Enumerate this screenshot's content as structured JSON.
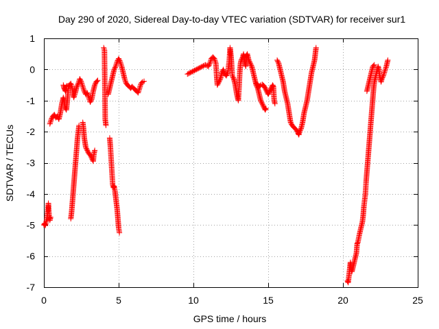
{
  "chart_data": {
    "type": "scatter",
    "title": "Day 290 of 2020, Sidereal Day-to-day VTEC variation (SDTVAR) for receiver sur1",
    "xlabel": "GPS time / hours",
    "ylabel": "SDTVAR / TECUs",
    "xlim": [
      0,
      25
    ],
    "ylim": [
      -7,
      1
    ],
    "xticks": [
      0,
      5,
      10,
      15,
      20,
      25
    ],
    "yticks": [
      -7,
      -6,
      -5,
      -4,
      -3,
      -2,
      -1,
      0,
      1
    ],
    "xtick_labels": [
      "0",
      "5",
      "10",
      "15",
      "20",
      "25"
    ],
    "ytick_labels": [
      "-7",
      "-6",
      "-5",
      "-4",
      "-3",
      "-2",
      "-1",
      "0",
      "1"
    ],
    "grid": true,
    "marker": "plus",
    "color": "#ff0000",
    "series": [
      {
        "name": "SDTVAR",
        "segments": [
          [
            [
              0.0,
              -5.0
            ],
            [
              0.05,
              -4.95
            ],
            [
              0.1,
              -5.02
            ],
            [
              0.15,
              -4.9
            ],
            [
              0.2,
              -4.8
            ],
            [
              0.25,
              -4.6
            ],
            [
              0.3,
              -4.3
            ],
            [
              0.35,
              -4.7
            ],
            [
              0.4,
              -4.85
            ],
            [
              0.45,
              -4.75
            ]
          ],
          [
            [
              0.4,
              -1.75
            ],
            [
              0.5,
              -1.6
            ],
            [
              0.6,
              -1.5
            ],
            [
              0.7,
              -1.45
            ],
            [
              0.8,
              -1.55
            ],
            [
              0.9,
              -1.5
            ],
            [
              1.0,
              -1.6
            ],
            [
              1.1,
              -1.4
            ],
            [
              1.2,
              -1.1
            ],
            [
              1.3,
              -0.9
            ],
            [
              1.35,
              -1.0
            ],
            [
              1.4,
              -1.2
            ],
            [
              1.5,
              -1.3
            ],
            [
              1.55,
              -1.1
            ],
            [
              1.6,
              -0.8
            ],
            [
              1.65,
              -0.55
            ],
            [
              1.7,
              -0.5
            ],
            [
              1.8,
              -0.45
            ],
            [
              1.9,
              -0.6
            ],
            [
              1.95,
              -0.8
            ],
            [
              2.0,
              -0.9
            ],
            [
              2.1,
              -0.75
            ],
            [
              2.2,
              -0.55
            ],
            [
              2.3,
              -0.45
            ],
            [
              2.4,
              -0.3
            ],
            [
              2.5,
              -0.4
            ],
            [
              2.6,
              -0.55
            ],
            [
              2.7,
              -0.7
            ],
            [
              2.8,
              -0.8
            ],
            [
              2.9,
              -0.75
            ],
            [
              3.0,
              -0.9
            ],
            [
              3.1,
              -1.05
            ],
            [
              3.2,
              -0.95
            ],
            [
              3.3,
              -0.7
            ],
            [
              3.4,
              -0.5
            ],
            [
              3.5,
              -0.4
            ],
            [
              3.6,
              -0.35
            ]
          ],
          [
            [
              1.3,
              -0.5
            ],
            [
              1.35,
              -0.6
            ],
            [
              1.4,
              -0.65
            ],
            [
              1.45,
              -0.7
            ],
            [
              1.5,
              -0.55
            ],
            [
              1.55,
              -0.52
            ]
          ],
          [
            [
              1.8,
              -4.8
            ],
            [
              1.85,
              -4.6
            ],
            [
              1.9,
              -4.3
            ],
            [
              1.95,
              -4.0
            ],
            [
              2.0,
              -3.7
            ],
            [
              2.05,
              -3.4
            ],
            [
              2.1,
              -3.1
            ],
            [
              2.15,
              -2.8
            ],
            [
              2.2,
              -2.5
            ],
            [
              2.25,
              -2.2
            ],
            [
              2.3,
              -2.0
            ],
            [
              2.35,
              -1.8
            ]
          ],
          [
            [
              2.6,
              -1.7
            ],
            [
              2.65,
              -1.9
            ],
            [
              2.7,
              -2.2
            ],
            [
              2.8,
              -2.5
            ],
            [
              2.9,
              -2.6
            ],
            [
              3.0,
              -2.7
            ],
            [
              3.1,
              -2.75
            ],
            [
              3.2,
              -2.85
            ],
            [
              3.3,
              -2.95
            ],
            [
              3.35,
              -2.7
            ],
            [
              3.4,
              -2.6
            ]
          ],
          [
            [
              4.0,
              0.7
            ],
            [
              4.05,
              0.62
            ],
            [
              4.1,
              -1.6
            ],
            [
              4.15,
              -1.8
            ]
          ],
          [
            [
              4.4,
              -2.2
            ],
            [
              4.45,
              -2.5
            ],
            [
              4.5,
              -2.9
            ],
            [
              4.55,
              -3.3
            ],
            [
              4.6,
              -3.7
            ],
            [
              4.65,
              -3.8
            ],
            [
              4.7,
              -3.75
            ],
            [
              4.75,
              -3.9
            ],
            [
              4.8,
              -4.1
            ],
            [
              4.85,
              -4.3
            ],
            [
              4.9,
              -4.5
            ],
            [
              4.95,
              -4.8
            ],
            [
              5.0,
              -5.1
            ],
            [
              5.05,
              -5.25
            ]
          ],
          [
            [
              4.3,
              -0.8
            ],
            [
              4.4,
              -0.6
            ],
            [
              4.5,
              -0.4
            ],
            [
              4.6,
              -0.2
            ],
            [
              4.7,
              0.0
            ],
            [
              4.8,
              0.1
            ],
            [
              4.9,
              0.25
            ],
            [
              5.0,
              0.35
            ],
            [
              5.1,
              0.25
            ],
            [
              5.2,
              0.1
            ],
            [
              5.3,
              -0.1
            ],
            [
              5.4,
              -0.3
            ],
            [
              5.5,
              -0.45
            ],
            [
              5.6,
              -0.5
            ],
            [
              5.7,
              -0.55
            ],
            [
              5.8,
              -0.6
            ],
            [
              5.9,
              -0.55
            ],
            [
              6.0,
              -0.6
            ],
            [
              6.1,
              -0.65
            ],
            [
              6.2,
              -0.7
            ],
            [
              6.3,
              -0.75
            ],
            [
              6.4,
              -0.6
            ],
            [
              6.5,
              -0.45
            ],
            [
              6.6,
              -0.4
            ],
            [
              6.7,
              -0.38
            ]
          ],
          [
            [
              9.6,
              -0.15
            ],
            [
              9.8,
              -0.1
            ],
            [
              10.0,
              -0.05
            ],
            [
              10.2,
              0.0
            ],
            [
              10.4,
              0.05
            ],
            [
              10.6,
              0.1
            ],
            [
              10.8,
              0.15
            ],
            [
              11.0,
              0.1
            ],
            [
              11.1,
              0.2
            ],
            [
              11.2,
              0.35
            ],
            [
              11.3,
              0.4
            ],
            [
              11.4,
              0.35
            ],
            [
              11.5,
              0.2
            ],
            [
              11.55,
              -0.2
            ],
            [
              11.6,
              -0.5
            ],
            [
              11.7,
              -0.4
            ],
            [
              11.8,
              -0.3
            ],
            [
              11.9,
              -0.1
            ],
            [
              12.0,
              0.0
            ],
            [
              12.1,
              -0.15
            ],
            [
              12.2,
              -0.2
            ],
            [
              12.3,
              -0.1
            ],
            [
              12.4,
              0.3
            ],
            [
              12.45,
              0.7
            ],
            [
              12.5,
              0.5
            ],
            [
              12.55,
              0.2
            ],
            [
              12.6,
              -0.2
            ],
            [
              12.7,
              -0.3
            ],
            [
              12.8,
              -0.5
            ],
            [
              12.9,
              -0.8
            ],
            [
              13.0,
              -1.0
            ],
            [
              13.05,
              -0.6
            ],
            [
              13.1,
              -0.1
            ],
            [
              13.15,
              0.2
            ],
            [
              13.2,
              0.3
            ],
            [
              13.3,
              0.4
            ],
            [
              13.35,
              0.5
            ],
            [
              13.4,
              0.3
            ],
            [
              13.5,
              0.1
            ],
            [
              13.55,
              0.45
            ],
            [
              13.6,
              0.5
            ],
            [
              13.7,
              0.3
            ],
            [
              13.8,
              0.2
            ],
            [
              13.9,
              0.1
            ],
            [
              14.0,
              -0.1
            ],
            [
              14.1,
              -0.3
            ],
            [
              14.2,
              -0.5
            ],
            [
              14.3,
              -0.6
            ],
            [
              14.4,
              -0.8
            ],
            [
              14.5,
              -1.0
            ],
            [
              14.6,
              -1.1
            ],
            [
              14.7,
              -1.2
            ],
            [
              14.8,
              -1.3
            ],
            [
              14.85,
              -1.25
            ]
          ],
          [
            [
              14.2,
              -0.45
            ],
            [
              14.3,
              -0.5
            ],
            [
              14.4,
              -0.55
            ],
            [
              14.5,
              -0.5
            ],
            [
              14.6,
              -0.48
            ],
            [
              14.7,
              -0.52
            ],
            [
              14.8,
              -0.6
            ],
            [
              14.9,
              -0.7
            ],
            [
              15.0,
              -0.8
            ],
            [
              15.1,
              -0.7
            ],
            [
              15.2,
              -0.6
            ],
            [
              15.3,
              -0.5
            ],
            [
              15.35,
              -0.55
            ],
            [
              15.4,
              -1.0
            ],
            [
              15.45,
              -1.1
            ]
          ],
          [
            [
              15.6,
              0.3
            ],
            [
              15.7,
              0.2
            ],
            [
              15.8,
              0.0
            ],
            [
              15.9,
              -0.2
            ],
            [
              16.0,
              -0.4
            ],
            [
              16.1,
              -0.7
            ],
            [
              16.2,
              -0.9
            ],
            [
              16.3,
              -1.1
            ],
            [
              16.4,
              -1.4
            ],
            [
              16.5,
              -1.7
            ],
            [
              16.6,
              -1.8
            ],
            [
              16.7,
              -1.85
            ],
            [
              16.8,
              -1.9
            ],
            [
              16.9,
              -1.95
            ],
            [
              17.0,
              -2.05
            ],
            [
              17.05,
              -2.1
            ],
            [
              17.1,
              -2.0
            ],
            [
              17.2,
              -1.9
            ],
            [
              17.3,
              -1.7
            ],
            [
              17.4,
              -1.4
            ],
            [
              17.5,
              -1.2
            ],
            [
              17.6,
              -1.0
            ],
            [
              17.7,
              -0.7
            ],
            [
              17.8,
              -0.4
            ],
            [
              17.9,
              -0.1
            ],
            [
              18.0,
              0.1
            ],
            [
              18.1,
              0.3
            ],
            [
              18.15,
              0.5
            ],
            [
              18.2,
              0.7
            ]
          ],
          [
            [
              20.3,
              -6.8
            ],
            [
              20.35,
              -6.85
            ],
            [
              20.5,
              -6.2
            ],
            [
              20.55,
              -6.4
            ],
            [
              20.6,
              -6.5
            ],
            [
              20.7,
              -6.3
            ],
            [
              20.8,
              -6.1
            ],
            [
              20.9,
              -5.9
            ],
            [
              20.95,
              -5.6
            ],
            [
              21.0,
              -5.55
            ],
            [
              21.1,
              -5.3
            ],
            [
              21.2,
              -5.1
            ],
            [
              21.3,
              -4.9
            ],
            [
              21.35,
              -4.7
            ],
            [
              21.4,
              -4.4
            ],
            [
              21.5,
              -4.0
            ],
            [
              21.55,
              -3.6
            ],
            [
              21.6,
              -3.3
            ],
            [
              21.65,
              -3.0
            ],
            [
              21.7,
              -2.7
            ],
            [
              21.75,
              -2.4
            ],
            [
              21.8,
              -2.1
            ],
            [
              21.85,
              -1.8
            ],
            [
              21.9,
              -1.5
            ],
            [
              21.95,
              -1.2
            ],
            [
              22.0,
              -0.9
            ],
            [
              22.05,
              -0.6
            ],
            [
              22.1,
              -0.4
            ],
            [
              22.15,
              -0.3
            ],
            [
              22.2,
              -0.2
            ],
            [
              22.25,
              -0.1
            ],
            [
              22.3,
              0.0
            ],
            [
              22.35,
              0.1
            ],
            [
              22.4,
              0.0
            ],
            [
              22.45,
              -0.2
            ],
            [
              22.5,
              -0.3
            ],
            [
              22.55,
              -0.4
            ],
            [
              22.6,
              -0.3
            ],
            [
              22.7,
              -0.2
            ],
            [
              22.8,
              -0.05
            ],
            [
              22.9,
              0.1
            ],
            [
              23.0,
              0.3
            ]
          ],
          [
            [
              21.6,
              -0.7
            ],
            [
              21.7,
              -0.5
            ],
            [
              21.8,
              -0.3
            ],
            [
              21.9,
              -0.1
            ],
            [
              22.0,
              0.1
            ],
            [
              22.1,
              0.15
            ]
          ]
        ]
      }
    ]
  }
}
